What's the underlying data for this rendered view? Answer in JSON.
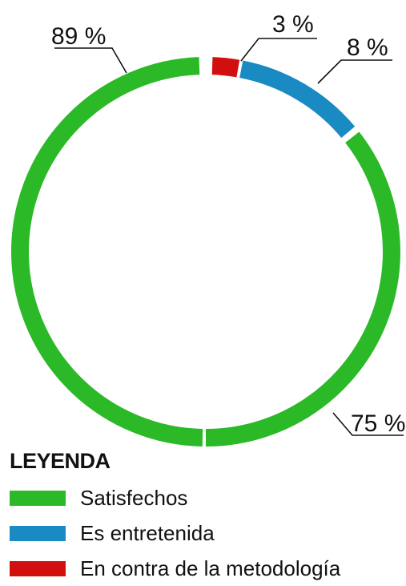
{
  "chart_data": {
    "type": "pie",
    "variant": "donut",
    "legend_title": "LEYENDA",
    "legend_placement": "bottom-left",
    "slices": [
      {
        "label": "Satisfechos",
        "value": 89,
        "value_label": "89 %",
        "color": "#2bb928"
      },
      {
        "label": "Satisfechos",
        "value": 75,
        "value_label": "75 %",
        "color": "#2bb928"
      },
      {
        "label": "Es entretenida",
        "value": 8,
        "value_label": "8 %",
        "color": "#1a8ac2"
      },
      {
        "label": "En contra de la metodología",
        "value": 3,
        "value_label": "3 %",
        "color": "#d10f0f"
      }
    ],
    "legend": [
      {
        "label": "Satisfechos",
        "color": "#2bb928"
      },
      {
        "label": "Es entretenida",
        "color": "#1a8ac2"
      },
      {
        "label": "En contra de la metodología",
        "color": "#d10f0f"
      }
    ]
  }
}
